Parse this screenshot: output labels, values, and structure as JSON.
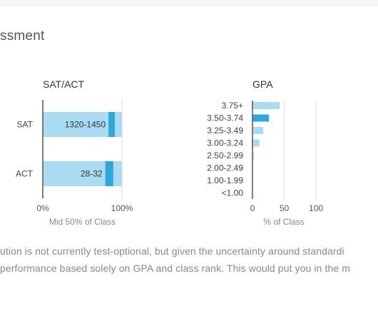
{
  "section": {
    "title": "ssment"
  },
  "description": {
    "line1": "ution is not currently test-optional, but given the uncertainty around standardi",
    "line2": "performance based solely on GPA and class rank. This would put you in the m"
  },
  "colors": {
    "light": "#a9dcf3",
    "dark": "#2ea7db",
    "axis": "#555555",
    "grid": "#dddddd"
  },
  "chart_data": [
    {
      "type": "bar",
      "orientation": "horizontal",
      "title": "SAT/ACT",
      "xlabel": "Mid 50% of Class",
      "xlim": [
        0,
        100
      ],
      "xticks": [
        "0%",
        "100%"
      ],
      "categories": [
        "SAT",
        "ACT"
      ],
      "range_labels": [
        "1320-1450",
        "28-32"
      ],
      "values": [
        100,
        100
      ],
      "marker": [
        [
          83,
          91
        ],
        [
          79,
          89
        ]
      ]
    },
    {
      "type": "bar",
      "orientation": "horizontal",
      "title": "GPA",
      "xlabel": "% of Class",
      "xlim": [
        0,
        100
      ],
      "xticks": [
        "0",
        "50",
        "100"
      ],
      "categories": [
        "3.75+",
        "3.50-3.74",
        "3.25-3.49",
        "3.00-3.24",
        "2.50-2.99",
        "2.00-2.49",
        "1.00-1.99",
        "<1.00"
      ],
      "values": [
        43,
        26,
        17,
        11,
        2,
        0,
        0,
        0
      ],
      "highlight_index": 1
    }
  ]
}
